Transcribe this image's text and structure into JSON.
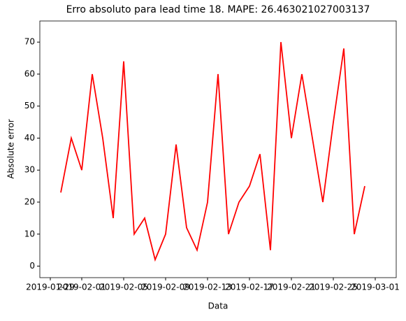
{
  "chart_data": {
    "type": "line",
    "title": "Erro absoluto para lead time 18. MAPE: 26.463021027003137",
    "xlabel": "Data",
    "ylabel": "Absolute error",
    "x": [
      "2019-01-30",
      "2019-01-31",
      "2019-02-01",
      "2019-02-02",
      "2019-02-03",
      "2019-02-04",
      "2019-02-05",
      "2019-02-06",
      "2019-02-07",
      "2019-02-08",
      "2019-02-09",
      "2019-02-10",
      "2019-02-11",
      "2019-02-12",
      "2019-02-13",
      "2019-02-14",
      "2019-02-15",
      "2019-02-16",
      "2019-02-17",
      "2019-02-18",
      "2019-02-19",
      "2019-02-20",
      "2019-02-21",
      "2019-02-22",
      "2019-02-23",
      "2019-02-24",
      "2019-02-25",
      "2019-02-26",
      "2019-02-27",
      "2019-02-28"
    ],
    "series": [
      {
        "name": "Absolute error",
        "color": "#ff0000",
        "values": [
          23,
          40,
          30,
          60,
          40,
          15,
          64,
          10,
          15,
          2,
          10,
          38,
          12,
          5,
          20,
          60,
          10,
          20,
          25,
          35,
          5,
          70,
          40,
          60,
          40,
          20,
          45,
          68,
          10,
          25
        ]
      }
    ],
    "xlim": [
      "2019-01-28",
      "2019-03-03"
    ],
    "xticks": [
      "2019-01-29",
      "2019-02-01",
      "2019-02-05",
      "2019-02-09",
      "2019-02-13",
      "2019-02-17",
      "2019-02-21",
      "2019-02-25",
      "2019-03-01"
    ],
    "ylim": [
      -3.6,
      76.6
    ],
    "yticks": [
      0,
      10,
      20,
      30,
      40,
      50,
      60,
      70
    ]
  }
}
